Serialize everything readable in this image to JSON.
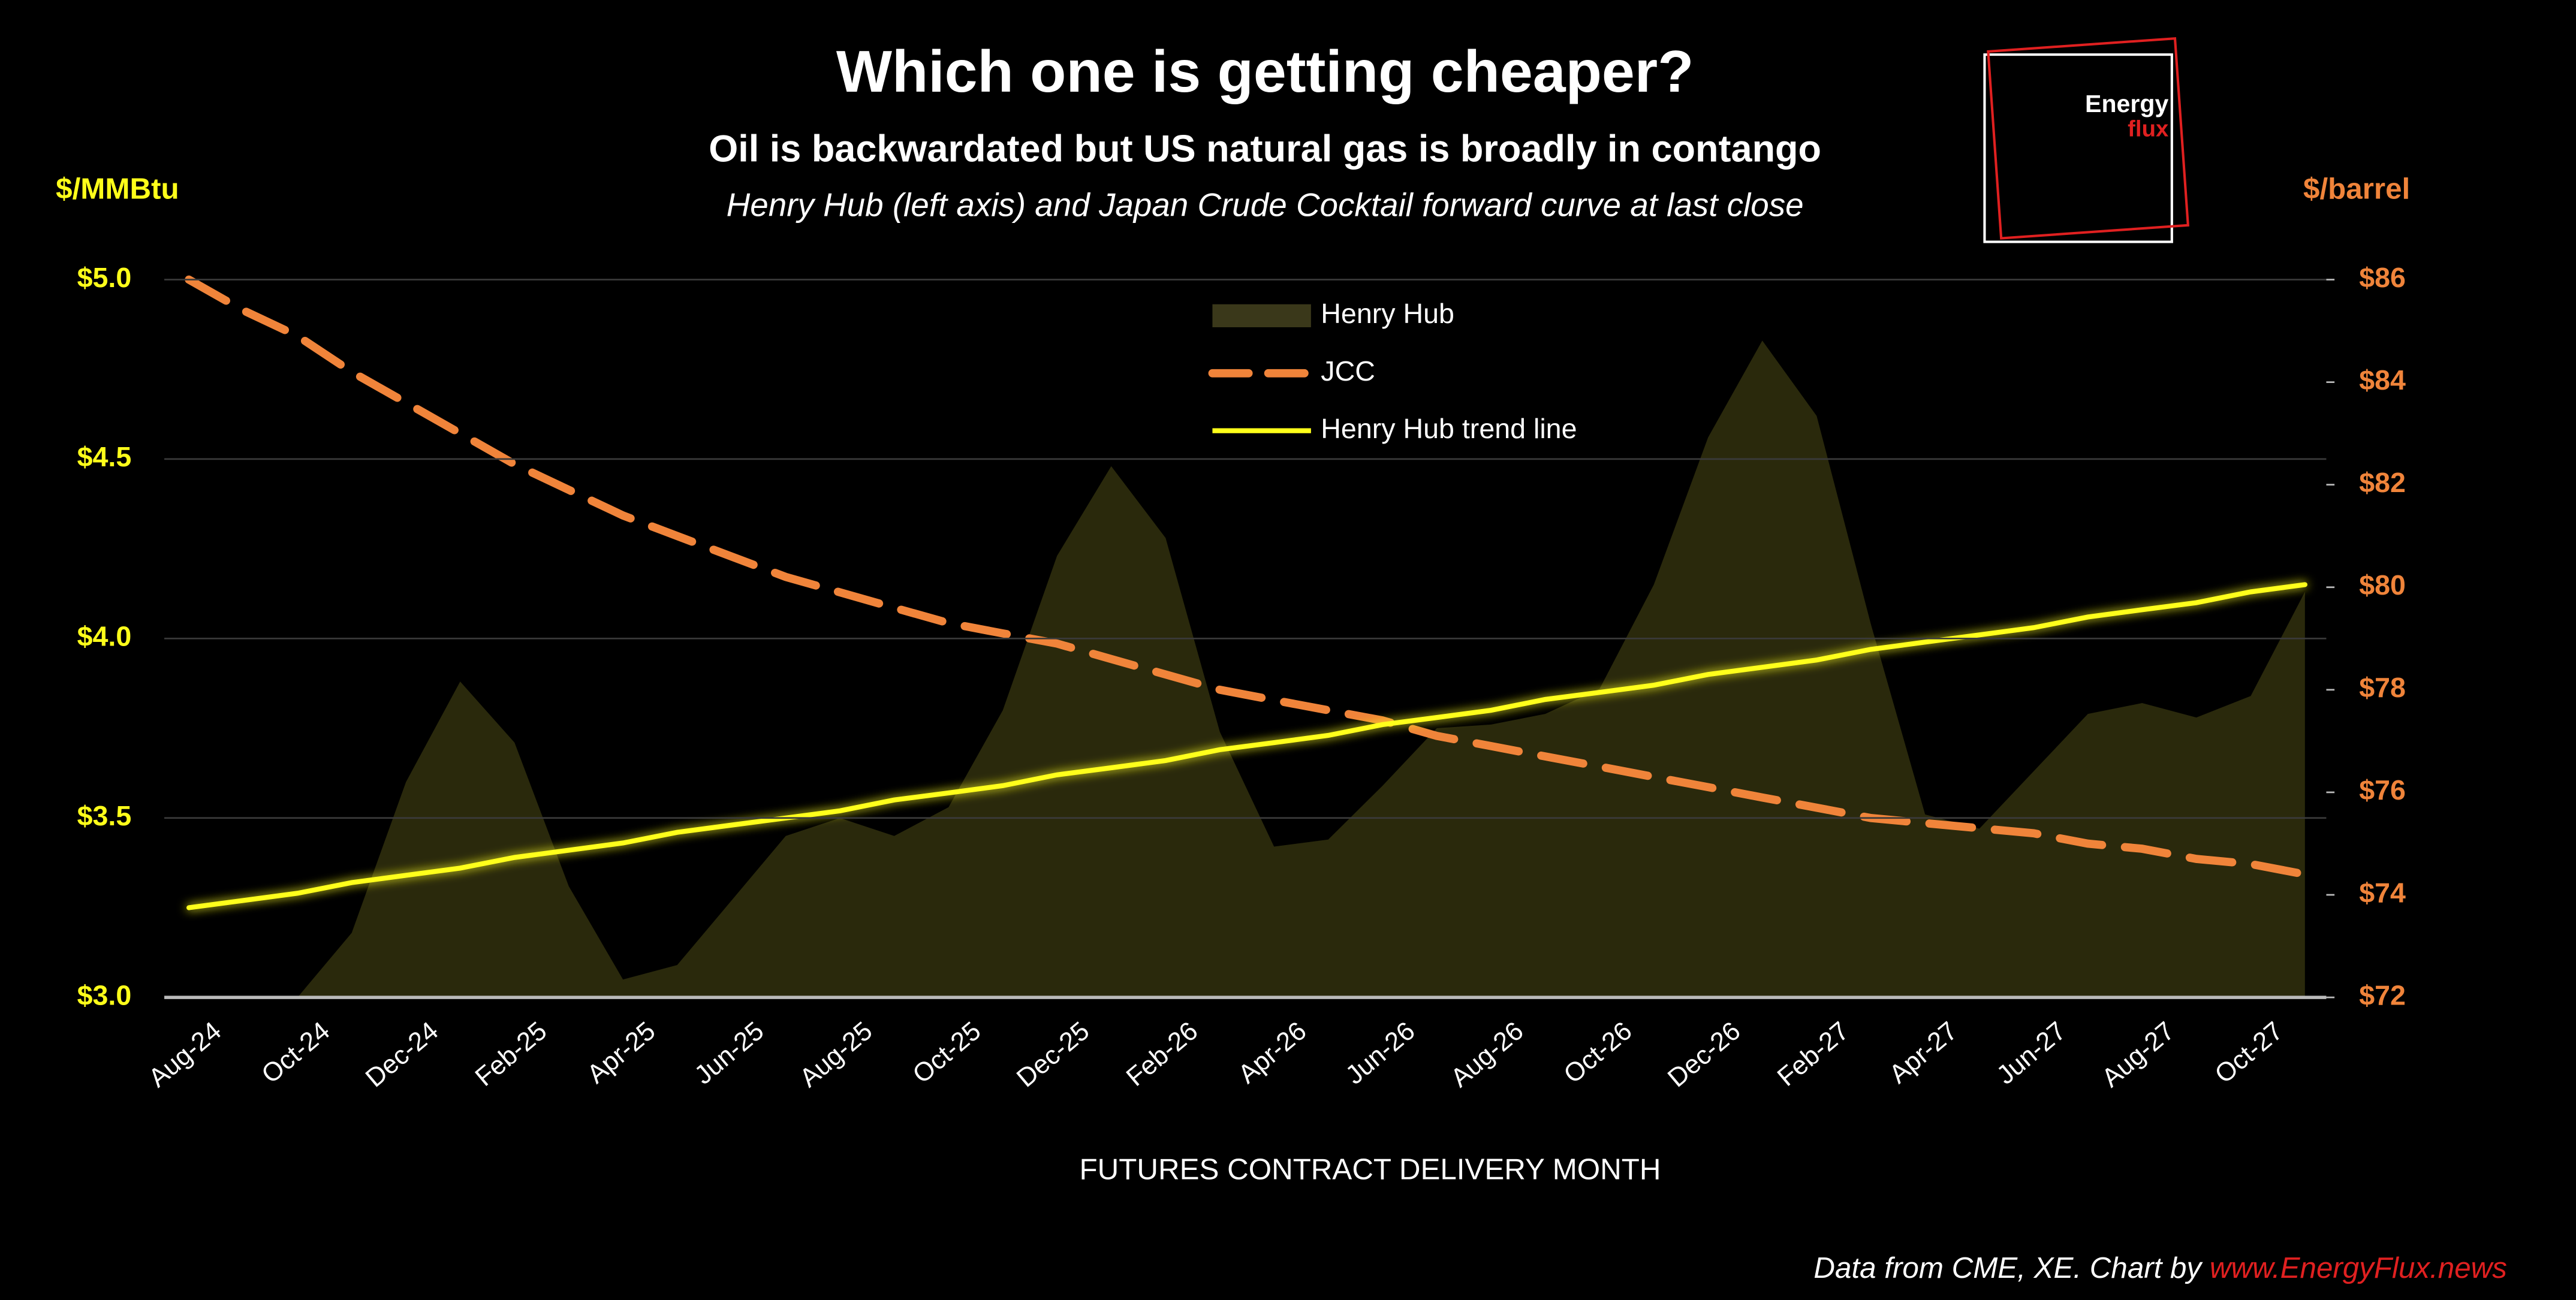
{
  "chart_data": {
    "type": "line",
    "title": "Which one is getting cheaper?",
    "subtitle": "Oil is backwardated but US natural gas is broadly in contango",
    "note": "Henry Hub (left axis) and Japan Crude Cocktail forward curve at last close",
    "ylabel": "$/MMBtu",
    "y2label": "$/barrel",
    "xlabel": "FUTURES CONTRACT DELIVERY MONTH",
    "source": "Data from CME, XE. Chart by ",
    "source_link": "www.EnergyFlux.news",
    "logo": [
      "Energy",
      "flux"
    ],
    "categories": [
      "Aug-24",
      null,
      "Oct-24",
      null,
      "Dec-24",
      null,
      "Feb-25",
      null,
      "Apr-25",
      null,
      "Jun-25",
      null,
      "Aug-25",
      null,
      "Oct-25",
      null,
      "Dec-25",
      null,
      "Feb-26",
      null,
      "Apr-26",
      null,
      "Jun-26",
      null,
      "Aug-26",
      null,
      "Oct-26",
      null,
      "Dec-26",
      null,
      "Feb-27",
      null,
      "Apr-27",
      null,
      "Jun-27",
      null,
      "Aug-27",
      null,
      "Oct-27",
      null
    ],
    "series": [
      {
        "name": "Henry Hub",
        "kind": "area",
        "color": "#2a290c",
        "values": [
          3.0,
          3.0,
          3.0,
          3.18,
          3.6,
          3.88,
          3.71,
          3.31,
          3.05,
          3.09,
          3.27,
          3.45,
          3.5,
          3.45,
          3.53,
          3.8,
          4.23,
          4.48,
          4.28,
          3.74,
          3.42,
          3.44,
          3.59,
          3.75,
          3.76,
          3.79,
          3.86,
          4.15,
          4.56,
          4.83,
          4.62,
          4.04,
          3.51,
          3.47,
          3.63,
          3.79,
          3.82,
          3.78,
          3.84,
          4.13
        ]
      },
      {
        "name": "JCC",
        "kind": "dashed",
        "axis": "y2",
        "color": "#f0843a",
        "values": [
          86.0,
          85.4,
          84.9,
          84.2,
          83.6,
          83.0,
          82.4,
          81.9,
          81.4,
          81.0,
          80.6,
          80.2,
          79.9,
          79.6,
          79.3,
          79.1,
          78.9,
          78.6,
          78.3,
          78.0,
          77.8,
          77.6,
          77.4,
          77.1,
          76.9,
          76.7,
          76.5,
          76.3,
          76.1,
          75.9,
          75.7,
          75.5,
          75.4,
          75.3,
          75.2,
          75.0,
          74.9,
          74.7,
          74.6,
          74.4
        ]
      },
      {
        "name": "Henry Hub trend line",
        "kind": "solid",
        "color": "#ffff1a",
        "values": [
          3.25,
          3.27,
          3.29,
          3.32,
          3.34,
          3.36,
          3.39,
          3.41,
          3.43,
          3.46,
          3.48,
          3.5,
          3.52,
          3.55,
          3.57,
          3.59,
          3.62,
          3.64,
          3.66,
          3.69,
          3.71,
          3.73,
          3.76,
          3.78,
          3.8,
          3.83,
          3.85,
          3.87,
          3.9,
          3.92,
          3.94,
          3.97,
          3.99,
          4.01,
          4.03,
          4.06,
          4.08,
          4.1,
          4.13,
          4.15
        ]
      }
    ],
    "ylim": [
      3.0,
      5.0
    ],
    "yticks": [
      {
        "value": 3.0,
        "label": "$3.0"
      },
      {
        "value": 3.5,
        "label": "$3.5"
      },
      {
        "value": 4.0,
        "label": "$4.0"
      },
      {
        "value": 4.5,
        "label": "$4.5"
      },
      {
        "value": 5.0,
        "label": "$5.0"
      }
    ],
    "y2lim": [
      72,
      86
    ],
    "y2ticks": [
      {
        "value": 72,
        "label": "$72"
      },
      {
        "value": 74,
        "label": "$74"
      },
      {
        "value": 76,
        "label": "$76"
      },
      {
        "value": 78,
        "label": "$78"
      },
      {
        "value": 80,
        "label": "$80"
      },
      {
        "value": 82,
        "label": "$82"
      },
      {
        "value": 84,
        "label": "$84"
      },
      {
        "value": 86,
        "label": "$86"
      }
    ],
    "grid": true,
    "legend": "top"
  }
}
